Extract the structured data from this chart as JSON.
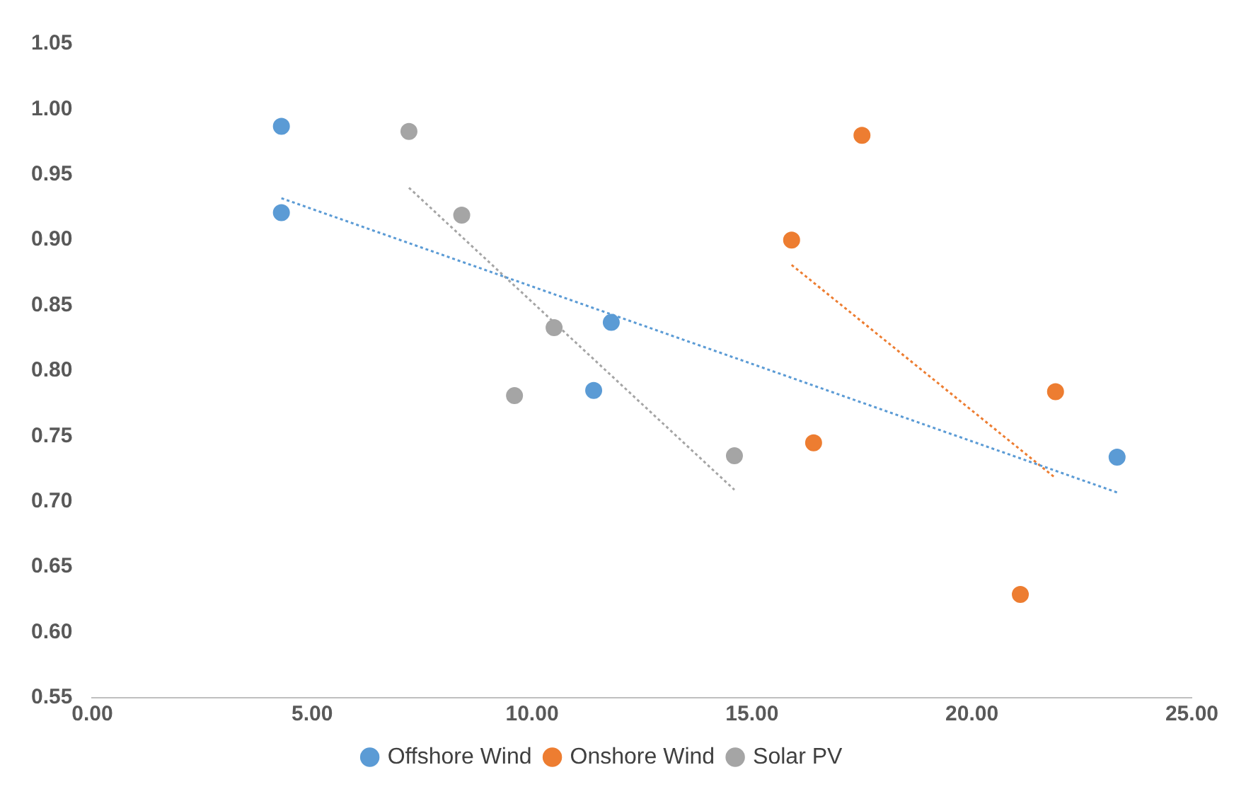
{
  "chart_data": {
    "type": "scatter",
    "xlim": [
      0,
      25
    ],
    "ylim": [
      0.55,
      1.05
    ],
    "xticks": [
      {
        "value": 0,
        "label": "0.00"
      },
      {
        "value": 5,
        "label": "5.00"
      },
      {
        "value": 10,
        "label": "10.00"
      },
      {
        "value": 15,
        "label": "15.00"
      },
      {
        "value": 20,
        "label": "20.00"
      },
      {
        "value": 25,
        "label": "25.00"
      }
    ],
    "yticks": [
      {
        "value": 0.55,
        "label": "0.55"
      },
      {
        "value": 0.6,
        "label": "0.60"
      },
      {
        "value": 0.65,
        "label": "0.65"
      },
      {
        "value": 0.7,
        "label": "0.70"
      },
      {
        "value": 0.75,
        "label": "0.75"
      },
      {
        "value": 0.8,
        "label": "0.80"
      },
      {
        "value": 0.85,
        "label": "0.85"
      },
      {
        "value": 0.9,
        "label": "0.90"
      },
      {
        "value": 0.95,
        "label": "0.95"
      },
      {
        "value": 1.0,
        "label": "1.00"
      },
      {
        "value": 1.05,
        "label": "1.05"
      }
    ],
    "grid": false,
    "legend": "bottom",
    "marker": "circle",
    "series": [
      {
        "name": "Offshore Wind",
        "color": "#5b9bd5",
        "x": [
          4.3,
          4.3,
          11.8,
          11.4,
          23.3
        ],
        "values": [
          0.987,
          0.921,
          0.837,
          0.785,
          0.734
        ]
      },
      {
        "name": "Onshore Wind",
        "color": "#ed7d31",
        "x": [
          15.9,
          17.5,
          16.4,
          21.9,
          21.1
        ],
        "values": [
          0.9,
          0.98,
          0.745,
          0.784,
          0.629
        ]
      },
      {
        "name": "Solar PV",
        "color": "#a5a5a5",
        "x": [
          7.2,
          8.4,
          10.5,
          9.6,
          14.6
        ],
        "values": [
          0.983,
          0.919,
          0.833,
          0.781,
          0.735
        ]
      },
      {
        "type": "line",
        "color": "#5b9bd5",
        "line_style": "dotted",
        "marker": "none",
        "x": [
          4.3,
          23.3
        ],
        "values": [
          0.932,
          0.707
        ]
      },
      {
        "type": "line",
        "color": "#ed7d31",
        "line_style": "dotted",
        "marker": "none",
        "x": [
          15.9,
          21.9
        ],
        "values": [
          0.881,
          0.718
        ]
      },
      {
        "type": "line",
        "color": "#a5a5a5",
        "line_style": "dotted",
        "marker": "none",
        "x": [
          7.2,
          14.6
        ],
        "values": [
          0.94,
          0.709
        ]
      }
    ]
  }
}
